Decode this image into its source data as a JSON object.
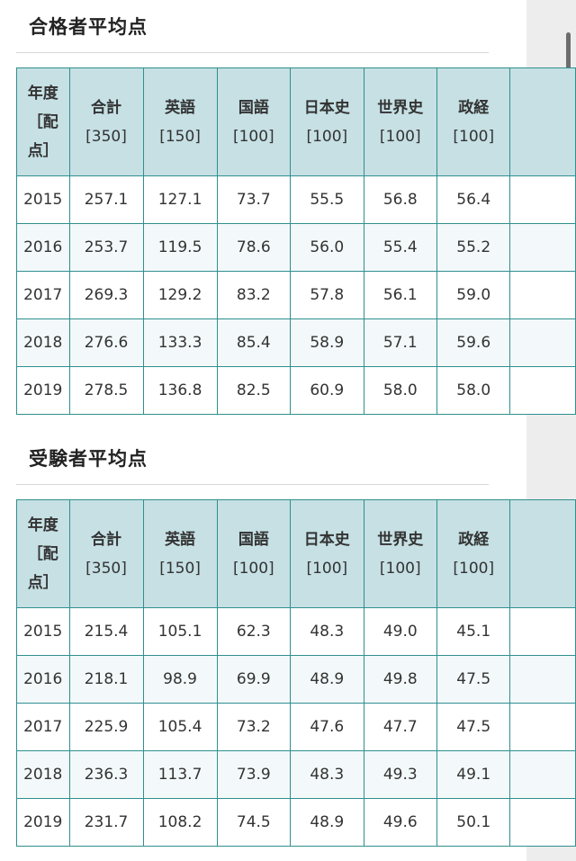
{
  "headers": [
    {
      "line1": "年度",
      "line2": "［配",
      "line3": "点］"
    },
    {
      "line1": "合計",
      "line2": "[350]"
    },
    {
      "line1": "英語",
      "line2": "[150]"
    },
    {
      "line1": "国語",
      "line2": "[100]"
    },
    {
      "line1": "日本史",
      "line2": "[100]"
    },
    {
      "line1": "世界史",
      "line2": "[100]"
    },
    {
      "line1": "政経",
      "line2": "[100]"
    }
  ],
  "passers": {
    "title": "合格者平均点",
    "rows": [
      [
        "2015",
        "257.1",
        "127.1",
        "73.7",
        "55.5",
        "56.8",
        "56.4"
      ],
      [
        "2016",
        "253.7",
        "119.5",
        "78.6",
        "56.0",
        "55.4",
        "55.2"
      ],
      [
        "2017",
        "269.3",
        "129.2",
        "83.2",
        "57.8",
        "56.1",
        "59.0"
      ],
      [
        "2018",
        "276.6",
        "133.3",
        "85.4",
        "58.9",
        "57.1",
        "59.6"
      ],
      [
        "2019",
        "278.5",
        "136.8",
        "82.5",
        "60.9",
        "58.0",
        "58.0"
      ]
    ]
  },
  "examinees": {
    "title": "受験者平均点",
    "rows": [
      [
        "2015",
        "215.4",
        "105.1",
        "62.3",
        "48.3",
        "49.0",
        "45.1"
      ],
      [
        "2016",
        "218.1",
        "98.9",
        "69.9",
        "48.9",
        "49.8",
        "47.5"
      ],
      [
        "2017",
        "225.9",
        "105.4",
        "73.2",
        "47.6",
        "47.7",
        "47.5"
      ],
      [
        "2018",
        "236.3",
        "113.7",
        "73.9",
        "48.3",
        "49.3",
        "49.1"
      ],
      [
        "2019",
        "231.7",
        "108.2",
        "74.5",
        "48.9",
        "49.6",
        "50.1"
      ]
    ]
  }
}
